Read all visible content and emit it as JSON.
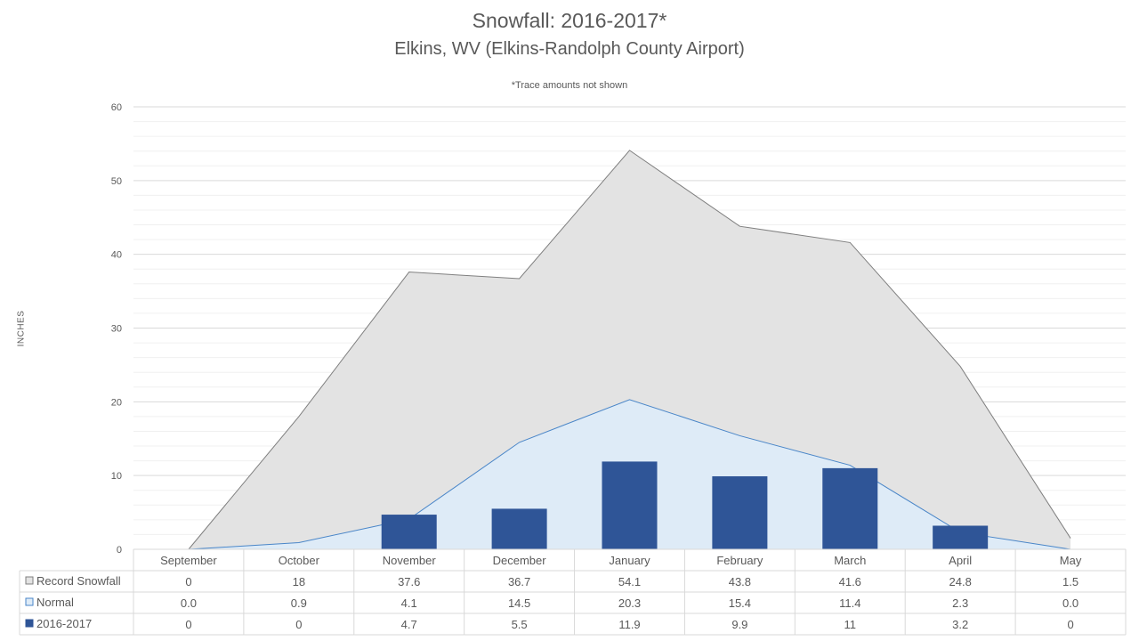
{
  "chart_data": {
    "type": "bar",
    "title": "Snowfall: 2016-2017*",
    "subtitle": "Elkins, WV (Elkins-Randolph County Airport)",
    "note": "*Trace amounts not shown",
    "ylabel": "INCHES",
    "ylim": [
      0,
      60
    ],
    "yticks": [
      0,
      10,
      20,
      30,
      40,
      50,
      60
    ],
    "categories": [
      "September",
      "October",
      "November",
      "December",
      "January",
      "February",
      "March",
      "April",
      "May"
    ],
    "series": [
      {
        "name": "Record Snowfall",
        "kind": "area",
        "color": "#e3e3e3",
        "stroke": "#7f7f7f",
        "values": [
          0,
          18,
          37.6,
          36.7,
          54.1,
          43.8,
          41.6,
          24.8,
          1.5
        ],
        "labels": [
          "0",
          "18",
          "37.6",
          "36.7",
          "54.1",
          "43.8",
          "41.6",
          "24.8",
          "1.5"
        ]
      },
      {
        "name": "Normal",
        "kind": "area",
        "color": "#deebf7",
        "stroke": "#4a86c8",
        "values": [
          0.0,
          0.9,
          4.1,
          14.5,
          20.3,
          15.4,
          11.4,
          2.3,
          0.0
        ],
        "labels": [
          "0.0",
          "0.9",
          "4.1",
          "14.5",
          "20.3",
          "15.4",
          "11.4",
          "2.3",
          "0.0"
        ]
      },
      {
        "name": "2016-2017",
        "kind": "bar",
        "color": "#2f5597",
        "values": [
          0,
          0,
          4.7,
          5.5,
          11.9,
          9.9,
          11,
          3.2,
          0
        ],
        "labels": [
          "0",
          "0",
          "4.7",
          "5.5",
          "11.9",
          "9.9",
          "11",
          "3.2",
          "0"
        ]
      }
    ],
    "grid": true,
    "legend": "data-table"
  }
}
